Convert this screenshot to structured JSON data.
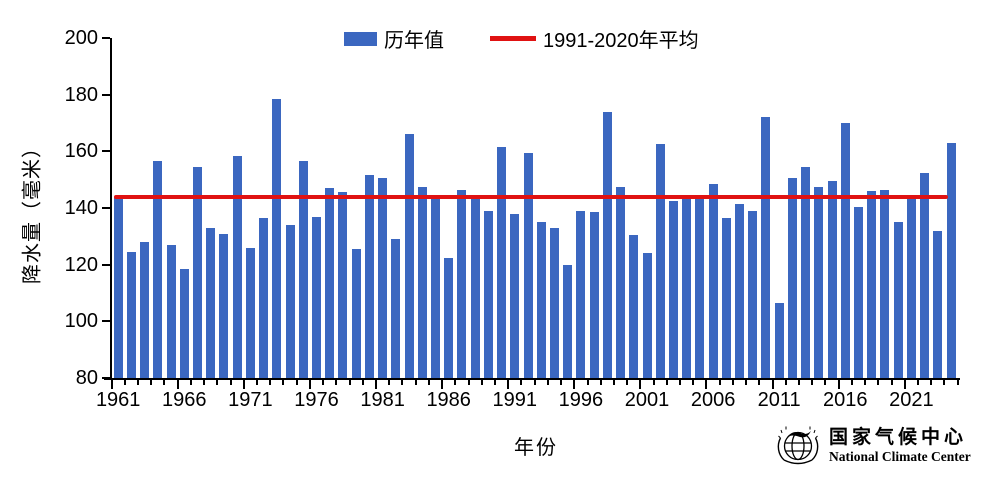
{
  "chart_data": {
    "type": "bar",
    "title": "",
    "xlabel": "年份",
    "ylabel": "降水量（毫米）",
    "series_name": "历年值",
    "bar_color": "#3b67c0",
    "ylim": [
      80,
      200
    ],
    "yticks": [
      80,
      100,
      120,
      140,
      160,
      180,
      200
    ],
    "xtick_labels": [
      1961,
      1966,
      1971,
      1976,
      1981,
      1986,
      1991,
      1996,
      2001,
      2006,
      2011,
      2016,
      2021
    ],
    "categories": [
      1961,
      1962,
      1963,
      1964,
      1965,
      1966,
      1967,
      1968,
      1969,
      1970,
      1971,
      1972,
      1973,
      1974,
      1975,
      1976,
      1977,
      1978,
      1979,
      1980,
      1981,
      1982,
      1983,
      1984,
      1985,
      1986,
      1987,
      1988,
      1989,
      1990,
      1991,
      1992,
      1993,
      1994,
      1995,
      1996,
      1997,
      1998,
      1999,
      2000,
      2001,
      2002,
      2003,
      2004,
      2005,
      2006,
      2007,
      2008,
      2009,
      2010,
      2011,
      2012,
      2013,
      2014,
      2015,
      2016,
      2017,
      2018,
      2019,
      2020,
      2021,
      2022,
      2023,
      2024
    ],
    "values": [
      144,
      124.5,
      128,
      156.5,
      127,
      118.5,
      154.5,
      133,
      131,
      158.5,
      126,
      136.5,
      178.5,
      134,
      156.5,
      137,
      147,
      145.5,
      125.5,
      151.5,
      150.5,
      129,
      166,
      147.5,
      144,
      122.5,
      146.5,
      144,
      139,
      161.5,
      138,
      159.5,
      135,
      133,
      120,
      139,
      138.5,
      174,
      147.5,
      130.5,
      124,
      162.5,
      142.5,
      144.5,
      143.5,
      148.5,
      136.5,
      141.5,
      139,
      172,
      106.5,
      150.5,
      154.5,
      147.5,
      149.5,
      170,
      140.5,
      146,
      146.5,
      135,
      144.5,
      152.5,
      132,
      163
    ],
    "mean_line": {
      "label": "1991-2020年平均",
      "value": 144,
      "color": "#e01212"
    },
    "legend_position": "top",
    "grid": false
  },
  "footer": {
    "org_cn": "国家气候中心",
    "org_en": "National Climate Center"
  }
}
